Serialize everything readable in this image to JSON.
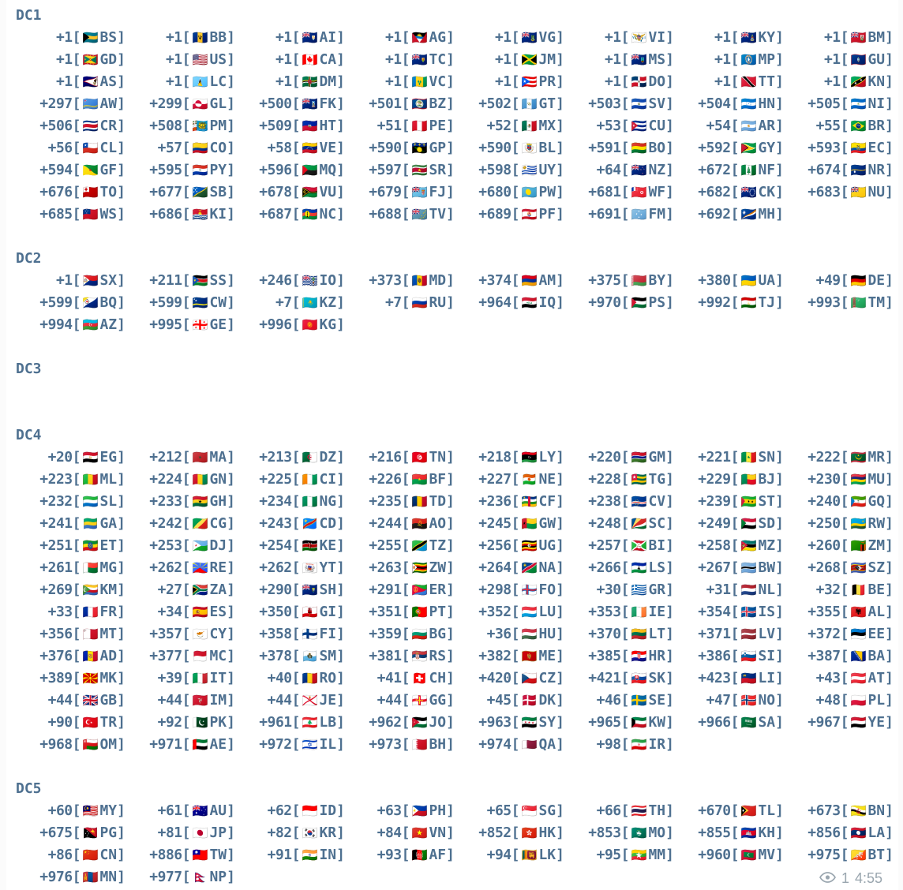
{
  "colors": {
    "text": "#4e7090",
    "footer": "#9aa6af",
    "background": "#ffffff"
  },
  "footer": {
    "views": "1",
    "time": "4:55"
  },
  "sections": [
    {
      "label": "DC1",
      "entries": [
        [
          "+1",
          "BS"
        ],
        [
          "+1",
          "BB"
        ],
        [
          "+1",
          "AI"
        ],
        [
          "+1",
          "AG"
        ],
        [
          "+1",
          "VG"
        ],
        [
          "+1",
          "VI"
        ],
        [
          "+1",
          "KY"
        ],
        [
          "+1",
          "BM"
        ],
        [
          "+1",
          "GD"
        ],
        [
          "+1",
          "US"
        ],
        [
          "+1",
          "CA"
        ],
        [
          "+1",
          "TC"
        ],
        [
          "+1",
          "JM"
        ],
        [
          "+1",
          "MS"
        ],
        [
          "+1",
          "MP"
        ],
        [
          "+1",
          "GU"
        ],
        [
          "+1",
          "AS"
        ],
        [
          "+1",
          "LC"
        ],
        [
          "+1",
          "DM"
        ],
        [
          "+1",
          "VC"
        ],
        [
          "+1",
          "PR"
        ],
        [
          "+1",
          "DO"
        ],
        [
          "+1",
          "TT"
        ],
        [
          "+1",
          "KN"
        ],
        [
          "+297",
          "AW"
        ],
        [
          "+299",
          "GL"
        ],
        [
          "+500",
          "FK"
        ],
        [
          "+501",
          "BZ"
        ],
        [
          "+502",
          "GT"
        ],
        [
          "+503",
          "SV"
        ],
        [
          "+504",
          "HN"
        ],
        [
          "+505",
          "NI"
        ],
        [
          "+506",
          "CR"
        ],
        [
          "+508",
          "PM"
        ],
        [
          "+509",
          "HT"
        ],
        [
          "+51",
          "PE"
        ],
        [
          "+52",
          "MX"
        ],
        [
          "+53",
          "CU"
        ],
        [
          "+54",
          "AR"
        ],
        [
          "+55",
          "BR"
        ],
        [
          "+56",
          "CL"
        ],
        [
          "+57",
          "CO"
        ],
        [
          "+58",
          "VE"
        ],
        [
          "+590",
          "GP"
        ],
        [
          "+590",
          "BL"
        ],
        [
          "+591",
          "BO"
        ],
        [
          "+592",
          "GY"
        ],
        [
          "+593",
          "EC"
        ],
        [
          "+594",
          "GF"
        ],
        [
          "+595",
          "PY"
        ],
        [
          "+596",
          "MQ"
        ],
        [
          "+597",
          "SR"
        ],
        [
          "+598",
          "UY"
        ],
        [
          "+64",
          "NZ"
        ],
        [
          "+672",
          "NF"
        ],
        [
          "+674",
          "NR"
        ],
        [
          "+676",
          "TO"
        ],
        [
          "+677",
          "SB"
        ],
        [
          "+678",
          "VU"
        ],
        [
          "+679",
          "FJ"
        ],
        [
          "+680",
          "PW"
        ],
        [
          "+681",
          "WF"
        ],
        [
          "+682",
          "CK"
        ],
        [
          "+683",
          "NU"
        ],
        [
          "+685",
          "WS"
        ],
        [
          "+686",
          "KI"
        ],
        [
          "+687",
          "NC"
        ],
        [
          "+688",
          "TV"
        ],
        [
          "+689",
          "PF"
        ],
        [
          "+691",
          "FM"
        ],
        [
          "+692",
          "MH"
        ]
      ]
    },
    {
      "label": "DC2",
      "entries": [
        [
          "+1",
          "SX"
        ],
        [
          "+211",
          "SS"
        ],
        [
          "+246",
          "IO"
        ],
        [
          "+373",
          "MD"
        ],
        [
          "+374",
          "AM"
        ],
        [
          "+375",
          "BY"
        ],
        [
          "+380",
          "UA"
        ],
        [
          "+49",
          "DE"
        ],
        [
          "+599",
          "BQ"
        ],
        [
          "+599",
          "CW"
        ],
        [
          "+7",
          "KZ"
        ],
        [
          "+7",
          "RU"
        ],
        [
          "+964",
          "IQ"
        ],
        [
          "+970",
          "PS"
        ],
        [
          "+992",
          "TJ"
        ],
        [
          "+993",
          "TM"
        ],
        [
          "+994",
          "AZ"
        ],
        [
          "+995",
          "GE"
        ],
        [
          "+996",
          "KG"
        ]
      ]
    },
    {
      "label": "DC3",
      "entries": []
    },
    {
      "label": "DC4",
      "entries": [
        [
          "+20",
          "EG"
        ],
        [
          "+212",
          "MA"
        ],
        [
          "+213",
          "DZ"
        ],
        [
          "+216",
          "TN"
        ],
        [
          "+218",
          "LY"
        ],
        [
          "+220",
          "GM"
        ],
        [
          "+221",
          "SN"
        ],
        [
          "+222",
          "MR"
        ],
        [
          "+223",
          "ML"
        ],
        [
          "+224",
          "GN"
        ],
        [
          "+225",
          "CI"
        ],
        [
          "+226",
          "BF"
        ],
        [
          "+227",
          "NE"
        ],
        [
          "+228",
          "TG"
        ],
        [
          "+229",
          "BJ"
        ],
        [
          "+230",
          "MU"
        ],
        [
          "+232",
          "SL"
        ],
        [
          "+233",
          "GH"
        ],
        [
          "+234",
          "NG"
        ],
        [
          "+235",
          "TD"
        ],
        [
          "+236",
          "CF"
        ],
        [
          "+238",
          "CV"
        ],
        [
          "+239",
          "ST"
        ],
        [
          "+240",
          "GQ"
        ],
        [
          "+241",
          "GA"
        ],
        [
          "+242",
          "CG"
        ],
        [
          "+243",
          "CD"
        ],
        [
          "+244",
          "AO"
        ],
        [
          "+245",
          "GW"
        ],
        [
          "+248",
          "SC"
        ],
        [
          "+249",
          "SD"
        ],
        [
          "+250",
          "RW"
        ],
        [
          "+251",
          "ET"
        ],
        [
          "+253",
          "DJ"
        ],
        [
          "+254",
          "KE"
        ],
        [
          "+255",
          "TZ"
        ],
        [
          "+256",
          "UG"
        ],
        [
          "+257",
          "BI"
        ],
        [
          "+258",
          "MZ"
        ],
        [
          "+260",
          "ZM"
        ],
        [
          "+261",
          "MG"
        ],
        [
          "+262",
          "RE"
        ],
        [
          "+262",
          "YT"
        ],
        [
          "+263",
          "ZW"
        ],
        [
          "+264",
          "NA"
        ],
        [
          "+266",
          "LS"
        ],
        [
          "+267",
          "BW"
        ],
        [
          "+268",
          "SZ"
        ],
        [
          "+269",
          "KM"
        ],
        [
          "+27",
          "ZA"
        ],
        [
          "+290",
          "SH"
        ],
        [
          "+291",
          "ER"
        ],
        [
          "+298",
          "FO"
        ],
        [
          "+30",
          "GR"
        ],
        [
          "+31",
          "NL"
        ],
        [
          "+32",
          "BE"
        ],
        [
          "+33",
          "FR"
        ],
        [
          "+34",
          "ES"
        ],
        [
          "+350",
          "GI"
        ],
        [
          "+351",
          "PT"
        ],
        [
          "+352",
          "LU"
        ],
        [
          "+353",
          "IE"
        ],
        [
          "+354",
          "IS"
        ],
        [
          "+355",
          "AL"
        ],
        [
          "+356",
          "MT"
        ],
        [
          "+357",
          "CY"
        ],
        [
          "+358",
          "FI"
        ],
        [
          "+359",
          "BG"
        ],
        [
          "+36",
          "HU"
        ],
        [
          "+370",
          "LT"
        ],
        [
          "+371",
          "LV"
        ],
        [
          "+372",
          "EE"
        ],
        [
          "+376",
          "AD"
        ],
        [
          "+377",
          "MC"
        ],
        [
          "+378",
          "SM"
        ],
        [
          "+381",
          "RS"
        ],
        [
          "+382",
          "ME"
        ],
        [
          "+385",
          "HR"
        ],
        [
          "+386",
          "SI"
        ],
        [
          "+387",
          "BA"
        ],
        [
          "+389",
          "MK"
        ],
        [
          "+39",
          "IT"
        ],
        [
          "+40",
          "RO"
        ],
        [
          "+41",
          "CH"
        ],
        [
          "+420",
          "CZ"
        ],
        [
          "+421",
          "SK"
        ],
        [
          "+423",
          "LI"
        ],
        [
          "+43",
          "AT"
        ],
        [
          "+44",
          "GB"
        ],
        [
          "+44",
          "IM"
        ],
        [
          "+44",
          "JE"
        ],
        [
          "+44",
          "GG"
        ],
        [
          "+45",
          "DK"
        ],
        [
          "+46",
          "SE"
        ],
        [
          "+47",
          "NO"
        ],
        [
          "+48",
          "PL"
        ],
        [
          "+90",
          "TR"
        ],
        [
          "+92",
          "PK"
        ],
        [
          "+961",
          "LB"
        ],
        [
          "+962",
          "JO"
        ],
        [
          "+963",
          "SY"
        ],
        [
          "+965",
          "KW"
        ],
        [
          "+966",
          "SA"
        ],
        [
          "+967",
          "YE"
        ],
        [
          "+968",
          "OM"
        ],
        [
          "+971",
          "AE"
        ],
        [
          "+972",
          "IL"
        ],
        [
          "+973",
          "BH"
        ],
        [
          "+974",
          "QA"
        ],
        [
          "+98",
          "IR"
        ]
      ]
    },
    {
      "label": "DC5",
      "entries": [
        [
          "+60",
          "MY"
        ],
        [
          "+61",
          "AU"
        ],
        [
          "+62",
          "ID"
        ],
        [
          "+63",
          "PH"
        ],
        [
          "+65",
          "SG"
        ],
        [
          "+66",
          "TH"
        ],
        [
          "+670",
          "TL"
        ],
        [
          "+673",
          "BN"
        ],
        [
          "+675",
          "PG"
        ],
        [
          "+81",
          "JP"
        ],
        [
          "+82",
          "KR"
        ],
        [
          "+84",
          "VN"
        ],
        [
          "+852",
          "HK"
        ],
        [
          "+853",
          "MO"
        ],
        [
          "+855",
          "KH"
        ],
        [
          "+856",
          "LA"
        ],
        [
          "+86",
          "CN"
        ],
        [
          "+886",
          "TW"
        ],
        [
          "+91",
          "IN"
        ],
        [
          "+93",
          "AF"
        ],
        [
          "+94",
          "LK"
        ],
        [
          "+95",
          "MM"
        ],
        [
          "+960",
          "MV"
        ],
        [
          "+975",
          "BT"
        ],
        [
          "+976",
          "MN"
        ],
        [
          "+977",
          "NP"
        ]
      ]
    }
  ]
}
